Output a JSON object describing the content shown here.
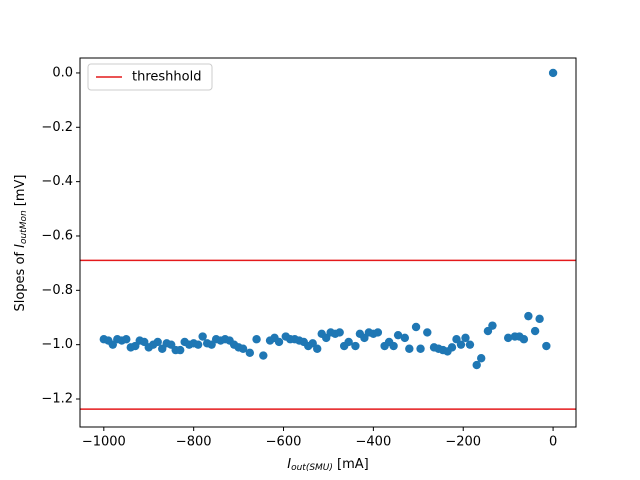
{
  "chart_data": {
    "type": "scatter",
    "xlabel": {
      "prefix": "",
      "var": "I",
      "sub": "out(SMU)",
      "unit": " [mA]"
    },
    "ylabel": {
      "prefix": "Slopes of ",
      "var": "I",
      "sub": "outMon",
      "unit": " [mV]"
    },
    "xlim": [
      -1053,
      51
    ],
    "ylim": [
      -1.303,
      0.055
    ],
    "xticks": [
      {
        "value": -1000,
        "label": "−1000"
      },
      {
        "value": -800,
        "label": "−800"
      },
      {
        "value": -600,
        "label": "−600"
      },
      {
        "value": -400,
        "label": "−400"
      },
      {
        "value": -200,
        "label": "−200"
      },
      0
    ],
    "yticks": [
      {
        "value": 0,
        "label": "0.0"
      },
      {
        "value": -0.2,
        "label": "−0.2"
      },
      {
        "value": -0.4,
        "label": "−0.4"
      },
      {
        "value": -0.6,
        "label": "−0.6"
      },
      {
        "value": -0.8,
        "label": "−0.8"
      },
      {
        "value": -1.0,
        "label": "−1.0"
      },
      {
        "value": -1.2,
        "label": "−1.2"
      }
    ],
    "grid": false,
    "legend": "upper left",
    "thresholds": {
      "name": "threshhold",
      "color": "#e41a1c",
      "values": [
        -0.69,
        -1.237
      ]
    },
    "series": [
      {
        "color": "#1f77b4",
        "x": [
          -1000,
          -990,
          -980,
          -970,
          -960,
          -950,
          -940,
          -930,
          -920,
          -910,
          -900,
          -890,
          -880,
          -870,
          -860,
          -850,
          -840,
          -830,
          -820,
          -810,
          -800,
          -790,
          -780,
          -770,
          -760,
          -750,
          -740,
          -730,
          -720,
          -710,
          -700,
          -690,
          -675,
          -660,
          -645,
          -630,
          -620,
          -610,
          -595,
          -585,
          -575,
          -565,
          -555,
          -545,
          -535,
          -525,
          -515,
          -505,
          -495,
          -485,
          -475,
          -465,
          -455,
          -440,
          -430,
          -420,
          -410,
          -400,
          -390,
          -375,
          -365,
          -355,
          -345,
          -330,
          -320,
          -305,
          -295,
          -280,
          -265,
          -255,
          -245,
          -235,
          -225,
          -215,
          -205,
          -195,
          -185,
          -170,
          -160,
          -145,
          -135,
          -100,
          -85,
          -75,
          -65,
          -55,
          -40,
          -30,
          -15,
          0
        ],
        "values": [
          -0.98,
          -0.985,
          -1.0,
          -0.98,
          -0.985,
          -0.98,
          -1.01,
          -1.005,
          -0.985,
          -0.99,
          -1.01,
          -1.0,
          -0.99,
          -1.015,
          -0.995,
          -1.0,
          -1.02,
          -1.02,
          -0.99,
          -1.0,
          -0.995,
          -1.0,
          -0.97,
          -0.995,
          -1.0,
          -0.98,
          -0.985,
          -0.98,
          -0.985,
          -1.0,
          -1.01,
          -1.015,
          -1.03,
          -0.98,
          -1.04,
          -0.985,
          -0.975,
          -0.99,
          -0.97,
          -0.98,
          -0.98,
          -0.985,
          -0.99,
          -1.005,
          -0.995,
          -1.015,
          -0.96,
          -0.975,
          -0.955,
          -0.96,
          -0.955,
          -1.005,
          -0.99,
          -1.005,
          -0.96,
          -0.975,
          -0.955,
          -0.96,
          -0.955,
          -1.005,
          -0.99,
          -1.005,
          -0.965,
          -0.975,
          -1.015,
          -0.935,
          -1.015,
          -0.955,
          -1.01,
          -1.015,
          -1.02,
          -1.025,
          -1.01,
          -0.98,
          -1.0,
          -0.975,
          -1.0,
          -1.075,
          -1.05,
          -0.95,
          -0.93,
          -0.975,
          -0.97,
          -0.97,
          -0.98,
          -0.895,
          -0.95,
          -0.905,
          -1.005,
          0.0
        ]
      }
    ]
  }
}
